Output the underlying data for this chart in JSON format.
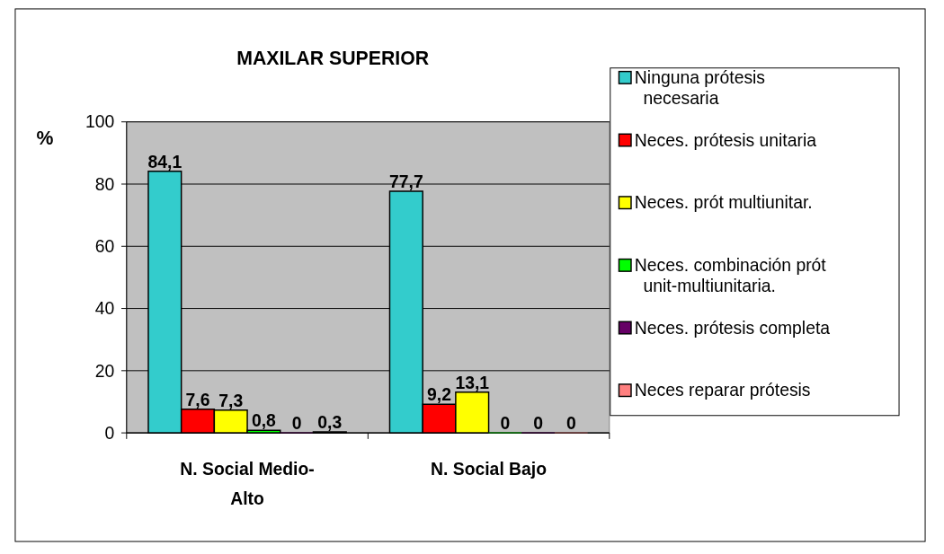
{
  "chart_data": {
    "type": "bar",
    "title": "MAXILAR SUPERIOR",
    "ylabel": "%",
    "categories": [
      "N. Social Medio-Alto",
      "N. Social Bajo"
    ],
    "series": [
      {
        "name": "Ninguna prótesis necesaria",
        "color": "#33cccc",
        "values": [
          84.1,
          77.7
        ],
        "value_labels": [
          "84,1",
          "77,7"
        ]
      },
      {
        "name": "Neces. prótesis unitaria",
        "color": "#ff0000",
        "values": [
          7.6,
          9.2
        ],
        "value_labels": [
          "7,6",
          "9,2"
        ]
      },
      {
        "name": "Neces. prót multiunitar.",
        "color": "#ffff00",
        "values": [
          7.3,
          13.1
        ],
        "value_labels": [
          "7,3",
          "13,1"
        ]
      },
      {
        "name": "Neces. combinación prót unit-multiunitaria.",
        "color": "#00ff00",
        "values": [
          0.8,
          0
        ],
        "value_labels": [
          "0,8",
          "0"
        ]
      },
      {
        "name": "Neces. prótesis completa",
        "color": "#660066",
        "values": [
          0,
          0
        ],
        "value_labels": [
          "0",
          "0"
        ]
      },
      {
        "name": "Neces reparar prótesis",
        "color": "#ff8080",
        "values": [
          0.3,
          0
        ],
        "value_labels": [
          "0,3",
          "0"
        ]
      }
    ],
    "ylim": [
      0,
      100
    ],
    "yticks": [
      0,
      20,
      40,
      60,
      80,
      100
    ],
    "grid": "y",
    "legend": "right"
  }
}
